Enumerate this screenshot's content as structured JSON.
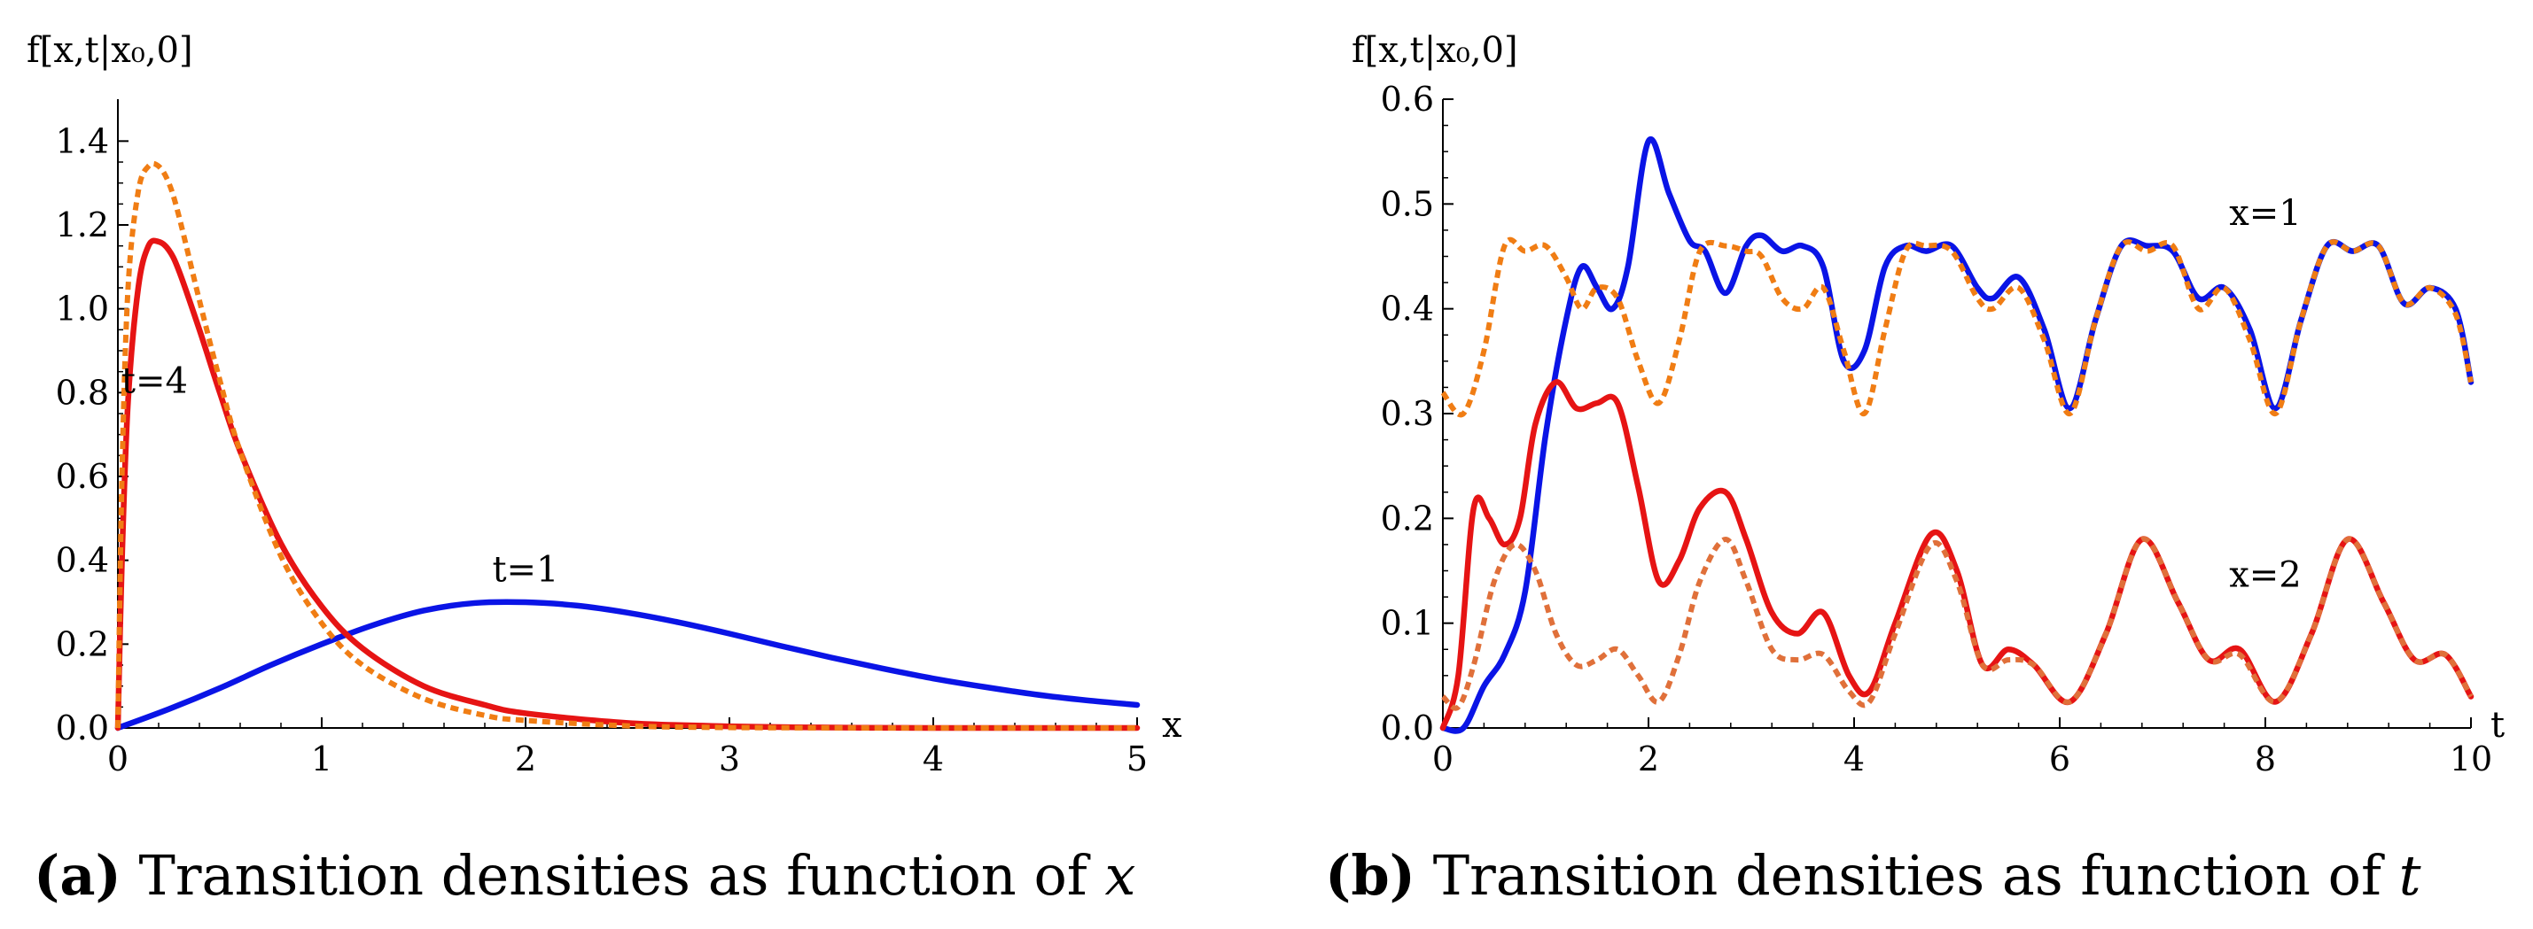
{
  "chart_data": [
    {
      "type": "line",
      "caption_letter": "(a)",
      "caption_text": " Transition densities as function of ",
      "caption_var": "x",
      "ylabel": "f[x,t|x₀,0]",
      "xlabel": "x",
      "xlim": [
        0,
        5
      ],
      "ylim": [
        0,
        1.5
      ],
      "xticks": [
        0,
        1,
        2,
        3,
        4,
        5
      ],
      "yticks": [
        0.0,
        0.2,
        0.4,
        0.6,
        0.8,
        1.0,
        1.2,
        1.4
      ],
      "ytick_labels": [
        "0.0",
        "0.2",
        "0.4",
        "0.6",
        "0.8",
        "1.0",
        "1.2",
        "1.4"
      ],
      "xtick_labels": [
        "0",
        "1",
        "2",
        "3",
        "4",
        "5"
      ],
      "annotations": [
        {
          "text": "t=4",
          "x": 0.18,
          "y": 0.8
        },
        {
          "text": "t=1",
          "x": 2.0,
          "y": 0.35
        }
      ],
      "series": [
        {
          "name": "t=1 solid",
          "color": "#0a14e6",
          "dash": false,
          "x": [
            0,
            0.25,
            0.5,
            0.75,
            1.0,
            1.25,
            1.5,
            1.75,
            2.0,
            2.25,
            2.5,
            2.75,
            3.0,
            3.25,
            3.5,
            3.75,
            4.0,
            4.25,
            4.5,
            4.75,
            5.0
          ],
          "y": [
            0.0,
            0.045,
            0.095,
            0.15,
            0.2,
            0.245,
            0.28,
            0.298,
            0.3,
            0.292,
            0.275,
            0.252,
            0.225,
            0.196,
            0.168,
            0.142,
            0.118,
            0.098,
            0.08,
            0.066,
            0.055
          ]
        },
        {
          "name": "t=4 solid",
          "color": "#e61414",
          "dash": false,
          "x": [
            0,
            0.02,
            0.05,
            0.1,
            0.15,
            0.2,
            0.25,
            0.3,
            0.4,
            0.5,
            0.6,
            0.8,
            1.0,
            1.2,
            1.5,
            1.8,
            2.0,
            2.5,
            3.0,
            3.5,
            4.0,
            5.0
          ],
          "y": [
            0.0,
            0.4,
            0.78,
            1.05,
            1.15,
            1.16,
            1.14,
            1.09,
            0.95,
            0.8,
            0.66,
            0.44,
            0.29,
            0.19,
            0.1,
            0.055,
            0.035,
            0.012,
            0.004,
            0.001,
            0.0,
            0.0
          ]
        },
        {
          "name": "t=4 dashed",
          "color": "#f07d14",
          "dash": true,
          "x": [
            0,
            0.02,
            0.05,
            0.1,
            0.15,
            0.2,
            0.25,
            0.3,
            0.4,
            0.5,
            0.6,
            0.8,
            1.0,
            1.2,
            1.5,
            1.8,
            2.0,
            2.5,
            3.0,
            4.0,
            5.0
          ],
          "y": [
            0.0,
            0.6,
            1.05,
            1.28,
            1.34,
            1.34,
            1.3,
            1.22,
            1.02,
            0.83,
            0.66,
            0.41,
            0.25,
            0.15,
            0.07,
            0.03,
            0.018,
            0.005,
            0.001,
            0.0,
            0.0
          ]
        }
      ]
    },
    {
      "type": "line",
      "caption_letter": "(b)",
      "caption_text": " Transition densities as function of ",
      "caption_var": "t",
      "ylabel": "f[x,t|x₀,0]",
      "xlabel": "t",
      "xlim": [
        0,
        10
      ],
      "ylim": [
        0,
        0.6
      ],
      "xticks": [
        0,
        2,
        4,
        6,
        8,
        10
      ],
      "yticks": [
        0.0,
        0.1,
        0.2,
        0.3,
        0.4,
        0.5,
        0.6
      ],
      "ytick_labels": [
        "0.0",
        "0.1",
        "0.2",
        "0.3",
        "0.4",
        "0.5",
        "0.6"
      ],
      "xtick_labels": [
        "0",
        "2",
        "4",
        "6",
        "8",
        "10"
      ],
      "annotations": [
        {
          "text": "x=1",
          "x": 8.0,
          "y": 0.48
        },
        {
          "text": "x=2",
          "x": 8.0,
          "y": 0.135
        }
      ],
      "series": [
        {
          "name": "x=1 solid",
          "color": "#0a14e6",
          "dash": false,
          "x": [
            0,
            0.2,
            0.4,
            0.6,
            0.8,
            1.0,
            1.2,
            1.35,
            1.5,
            1.65,
            1.8,
            2.0,
            2.2,
            2.4,
            2.55,
            2.75,
            2.95,
            3.1,
            3.3,
            3.5,
            3.7,
            3.9,
            4.1,
            4.3,
            4.5,
            4.7,
            4.95,
            5.2,
            5.35,
            5.6,
            5.85,
            6.1,
            6.35,
            6.6,
            6.85,
            7.1,
            7.35,
            7.6,
            7.85,
            8.1,
            8.35,
            8.6,
            8.85,
            9.1,
            9.35,
            9.6,
            9.85,
            10.0
          ],
          "y": [
            0.0,
            0.0,
            0.04,
            0.07,
            0.13,
            0.28,
            0.39,
            0.44,
            0.42,
            0.4,
            0.44,
            0.56,
            0.51,
            0.465,
            0.455,
            0.415,
            0.46,
            0.47,
            0.455,
            0.46,
            0.44,
            0.35,
            0.36,
            0.44,
            0.46,
            0.455,
            0.46,
            0.42,
            0.41,
            0.43,
            0.38,
            0.305,
            0.39,
            0.46,
            0.46,
            0.455,
            0.41,
            0.42,
            0.38,
            0.305,
            0.39,
            0.46,
            0.455,
            0.46,
            0.405,
            0.42,
            0.4,
            0.33
          ]
        },
        {
          "name": "x=1 dashed",
          "color": "#f07d14",
          "dash": true,
          "x": [
            0,
            0.2,
            0.4,
            0.6,
            0.8,
            1.0,
            1.2,
            1.35,
            1.5,
            1.7,
            1.9,
            2.1,
            2.3,
            2.5,
            2.75,
            2.95,
            3.1,
            3.3,
            3.5,
            3.7,
            3.9,
            4.1,
            4.3,
            4.5,
            4.7,
            4.95,
            5.2,
            5.35,
            5.6,
            5.85,
            6.1,
            6.35,
            6.6,
            6.85,
            7.1,
            7.35,
            7.6,
            7.85,
            8.1,
            8.35,
            8.6,
            8.85,
            9.1,
            9.35,
            9.6,
            9.85,
            10.0
          ],
          "y": [
            0.32,
            0.3,
            0.36,
            0.46,
            0.455,
            0.46,
            0.43,
            0.4,
            0.42,
            0.41,
            0.35,
            0.31,
            0.37,
            0.455,
            0.46,
            0.455,
            0.45,
            0.41,
            0.4,
            0.42,
            0.36,
            0.3,
            0.38,
            0.455,
            0.46,
            0.455,
            0.41,
            0.4,
            0.42,
            0.37,
            0.3,
            0.39,
            0.46,
            0.455,
            0.46,
            0.4,
            0.42,
            0.37,
            0.3,
            0.39,
            0.46,
            0.455,
            0.46,
            0.405,
            0.42,
            0.395,
            0.33
          ]
        },
        {
          "name": "x=2 solid",
          "color": "#e61414",
          "dash": false,
          "x": [
            0,
            0.15,
            0.3,
            0.45,
            0.6,
            0.75,
            0.9,
            1.1,
            1.3,
            1.5,
            1.7,
            1.9,
            2.1,
            2.3,
            2.5,
            2.75,
            2.95,
            3.2,
            3.45,
            3.7,
            3.95,
            4.15,
            4.4,
            4.75,
            5.0,
            5.25,
            5.5,
            5.75,
            6.1,
            6.45,
            6.8,
            7.15,
            7.45,
            7.75,
            8.1,
            8.45,
            8.8,
            9.15,
            9.45,
            9.75,
            10.0
          ],
          "y": [
            0.0,
            0.05,
            0.21,
            0.2,
            0.175,
            0.2,
            0.29,
            0.33,
            0.305,
            0.31,
            0.31,
            0.23,
            0.14,
            0.16,
            0.21,
            0.225,
            0.18,
            0.11,
            0.09,
            0.11,
            0.05,
            0.035,
            0.1,
            0.185,
            0.15,
            0.06,
            0.075,
            0.06,
            0.025,
            0.09,
            0.18,
            0.12,
            0.065,
            0.075,
            0.025,
            0.09,
            0.18,
            0.12,
            0.065,
            0.07,
            0.03
          ]
        },
        {
          "name": "x=2 dashed",
          "color": "#e0703a",
          "dash": true,
          "x": [
            0,
            0.15,
            0.3,
            0.5,
            0.7,
            0.9,
            1.1,
            1.3,
            1.5,
            1.7,
            1.9,
            2.1,
            2.3,
            2.5,
            2.75,
            2.95,
            3.2,
            3.45,
            3.7,
            3.95,
            4.15,
            4.4,
            4.75,
            5.0,
            5.25,
            5.5,
            5.75,
            6.1,
            6.45,
            6.8,
            7.15,
            7.45,
            7.75,
            8.1,
            8.45,
            8.8,
            9.15,
            9.45,
            9.75,
            10.0
          ],
          "y": [
            0.03,
            0.02,
            0.06,
            0.14,
            0.175,
            0.15,
            0.09,
            0.06,
            0.065,
            0.075,
            0.05,
            0.025,
            0.07,
            0.14,
            0.18,
            0.14,
            0.075,
            0.065,
            0.07,
            0.035,
            0.025,
            0.09,
            0.175,
            0.14,
            0.06,
            0.065,
            0.06,
            0.025,
            0.09,
            0.18,
            0.12,
            0.065,
            0.07,
            0.025,
            0.09,
            0.18,
            0.12,
            0.065,
            0.07,
            0.03
          ]
        }
      ]
    }
  ]
}
